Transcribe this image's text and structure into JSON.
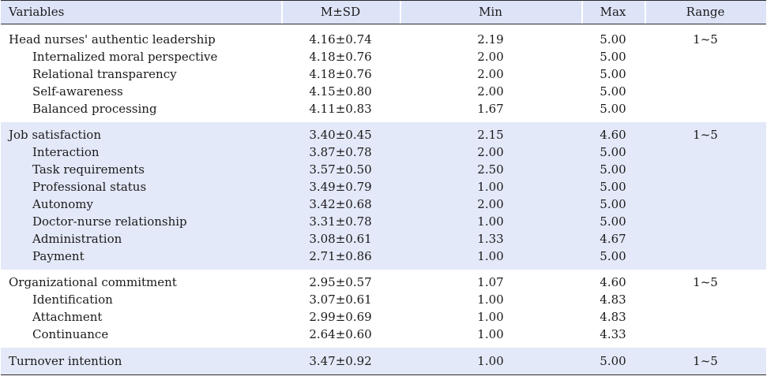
{
  "header": {
    "variables": "Variables",
    "msd": "M±SD",
    "min": "Min",
    "max": "Max",
    "range": "Range"
  },
  "groups": [
    {
      "label": "Head nurses' authentic leadership",
      "msd": "4.16±0.74",
      "min": "2.19",
      "max": "5.00",
      "range": "1~5",
      "items": [
        {
          "label": "Internalized moral perspective",
          "msd": "4.18±0.76",
          "min": "2.00",
          "max": "5.00"
        },
        {
          "label": "Relational transparency",
          "msd": "4.18±0.76",
          "min": "2.00",
          "max": "5.00"
        },
        {
          "label": "Self-awareness",
          "msd": "4.15±0.80",
          "min": "2.00",
          "max": "5.00"
        },
        {
          "label": "Balanced processing",
          "msd": "4.11±0.83",
          "min": "1.67",
          "max": "5.00"
        }
      ]
    },
    {
      "label": "Job satisfaction",
      "msd": "3.40±0.45",
      "min": "2.15",
      "max": "4.60",
      "range": "1~5",
      "items": [
        {
          "label": "Interaction",
          "msd": "3.87±0.78",
          "min": "2.00",
          "max": "5.00"
        },
        {
          "label": "Task requirements",
          "msd": "3.57±0.50",
          "min": "2.50",
          "max": "5.00"
        },
        {
          "label": "Professional status",
          "msd": "3.49±0.79",
          "min": "1.00",
          "max": "5.00"
        },
        {
          "label": "Autonomy",
          "msd": "3.42±0.68",
          "min": "2.00",
          "max": "5.00"
        },
        {
          "label": "Doctor-nurse relationship",
          "msd": "3.31±0.78",
          "min": "1.00",
          "max": "5.00"
        },
        {
          "label": "Administration",
          "msd": "3.08±0.61",
          "min": "1.33",
          "max": "4.67"
        },
        {
          "label": "Payment",
          "msd": "2.71±0.86",
          "min": "1.00",
          "max": "5.00"
        }
      ]
    },
    {
      "label": "Organizational commitment",
      "msd": "2.95±0.57",
      "min": "1.07",
      "max": "4.60",
      "range": "1~5",
      "items": [
        {
          "label": "Identification",
          "msd": "3.07±0.61",
          "min": "1.00",
          "max": "4.83"
        },
        {
          "label": "Attachment",
          "msd": "2.99±0.69",
          "min": "1.00",
          "max": "4.83"
        },
        {
          "label": "Continuance",
          "msd": "2.64±0.60",
          "min": "1.00",
          "max": "4.33"
        }
      ]
    },
    {
      "label": "Turnover intention",
      "msd": "3.47±0.92",
      "min": "1.00",
      "max": "5.00",
      "range": "1~5",
      "items": []
    }
  ]
}
